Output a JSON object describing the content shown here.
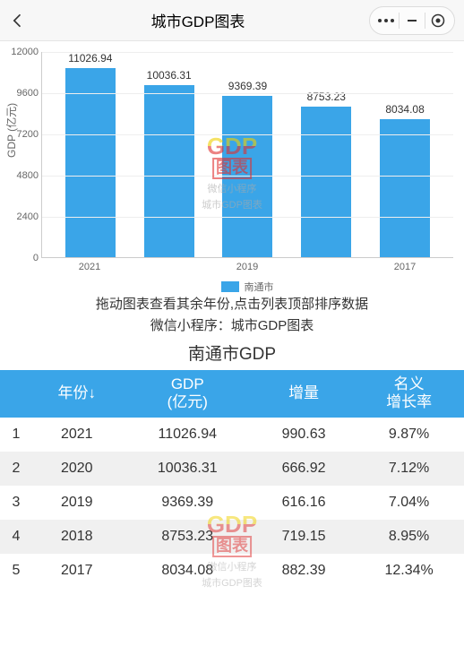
{
  "navbar": {
    "title": "城市GDP图表"
  },
  "chart": {
    "type": "bar",
    "ylabel": "GDP (亿元)",
    "ymax": 12000,
    "yticks": [
      0,
      2400,
      4800,
      7200,
      9600,
      12000
    ],
    "categories": [
      "2021",
      "",
      "2019",
      "",
      "2017"
    ],
    "values": [
      11026.94,
      10036.31,
      9369.39,
      8753.23,
      8034.08
    ],
    "bar_color": "#3aa5e8",
    "grid_color": "#eeeeee",
    "axis_color": "#cccccc",
    "background_color": "#ffffff",
    "legend_label": "南通市"
  },
  "watermark": {
    "line1": "GDP",
    "line2": "图表",
    "line3": "微信小程序",
    "line4": "城市GDP图表"
  },
  "hints": {
    "line1": "拖动图表查看其余年份,点击列表顶部排序数据",
    "line2": "微信小程序：城市GDP图表"
  },
  "table": {
    "title": "南通市GDP",
    "headers": [
      "",
      "年份↓",
      "GDP\n(亿元)",
      "增量",
      "名义\n增长率"
    ],
    "rows": [
      [
        "1",
        "2021",
        "11026.94",
        "990.63",
        "9.87%"
      ],
      [
        "2",
        "2020",
        "10036.31",
        "666.92",
        "7.12%"
      ],
      [
        "3",
        "2019",
        "9369.39",
        "616.16",
        "7.04%"
      ],
      [
        "4",
        "2018",
        "8753.23",
        "719.15",
        "8.95%"
      ],
      [
        "5",
        "2017",
        "8034.08",
        "882.39",
        "12.34%"
      ]
    ],
    "header_bg": "#3aa5e8",
    "header_color": "#ffffff",
    "row_alt_bg": "#f0f0f0"
  }
}
